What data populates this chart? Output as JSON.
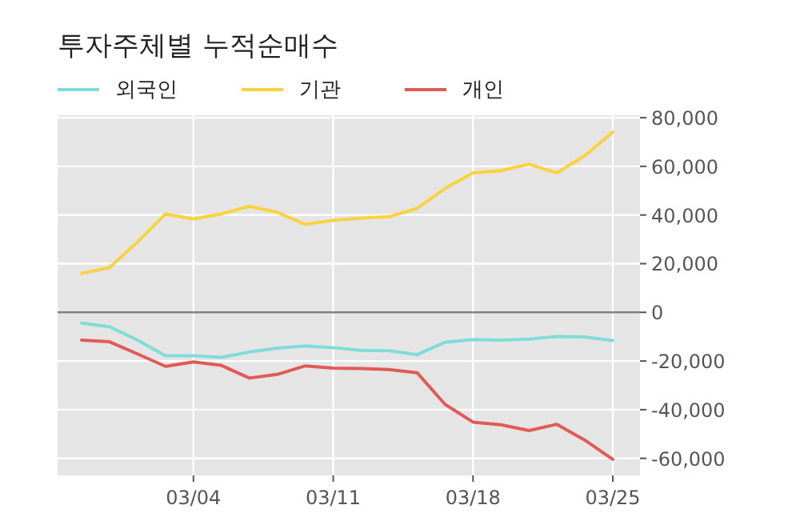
{
  "chart_data": {
    "type": "line",
    "title": "투자주체별 누적순매수",
    "categories": [
      null,
      null,
      null,
      null,
      "03/04",
      null,
      null,
      null,
      null,
      "03/11",
      null,
      null,
      null,
      null,
      "03/18",
      null,
      null,
      null,
      null,
      "03/25"
    ],
    "series": [
      {
        "name": "외국인",
        "color": "#7fdcd9",
        "values": [
          -4400,
          -5900,
          -11400,
          -17800,
          -17800,
          -18500,
          -16300,
          -14700,
          -13800,
          -14500,
          -15600,
          -15800,
          -17400,
          -12300,
          -11200,
          -11400,
          -11000,
          -9900,
          -10100,
          -11600
        ]
      },
      {
        "name": "기관",
        "color": "#f9d33f",
        "values": [
          16000,
          18400,
          28900,
          40400,
          38400,
          40400,
          43600,
          41100,
          36200,
          37800,
          38700,
          39300,
          42700,
          50900,
          57300,
          58200,
          60900,
          57300,
          64400,
          74000
        ]
      },
      {
        "name": "개인",
        "color": "#e05a57",
        "values": [
          -11400,
          -12100,
          -17100,
          -22200,
          -20400,
          -21800,
          -27000,
          -25500,
          -22000,
          -22900,
          -23100,
          -23500,
          -24800,
          -37800,
          -45100,
          -46200,
          -48600,
          -46000,
          -52500,
          -60400
        ]
      }
    ],
    "ylim": [
      -67000,
      81000
    ],
    "yticks": [
      {
        "value": -60000,
        "label": "-60,000"
      },
      {
        "value": -40000,
        "label": "-40,000"
      },
      {
        "value": -20000,
        "label": "-20,000"
      },
      0,
      {
        "value": 20000,
        "label": "20,000"
      },
      {
        "value": 40000,
        "label": "40,000"
      },
      {
        "value": 60000,
        "label": "60,000"
      },
      {
        "value": 80000,
        "label": "80,000"
      }
    ],
    "ref_lines": [
      {
        "axis": "y",
        "value": 0,
        "color": "#808080"
      }
    ],
    "grid": true,
    "legend": "top left"
  }
}
